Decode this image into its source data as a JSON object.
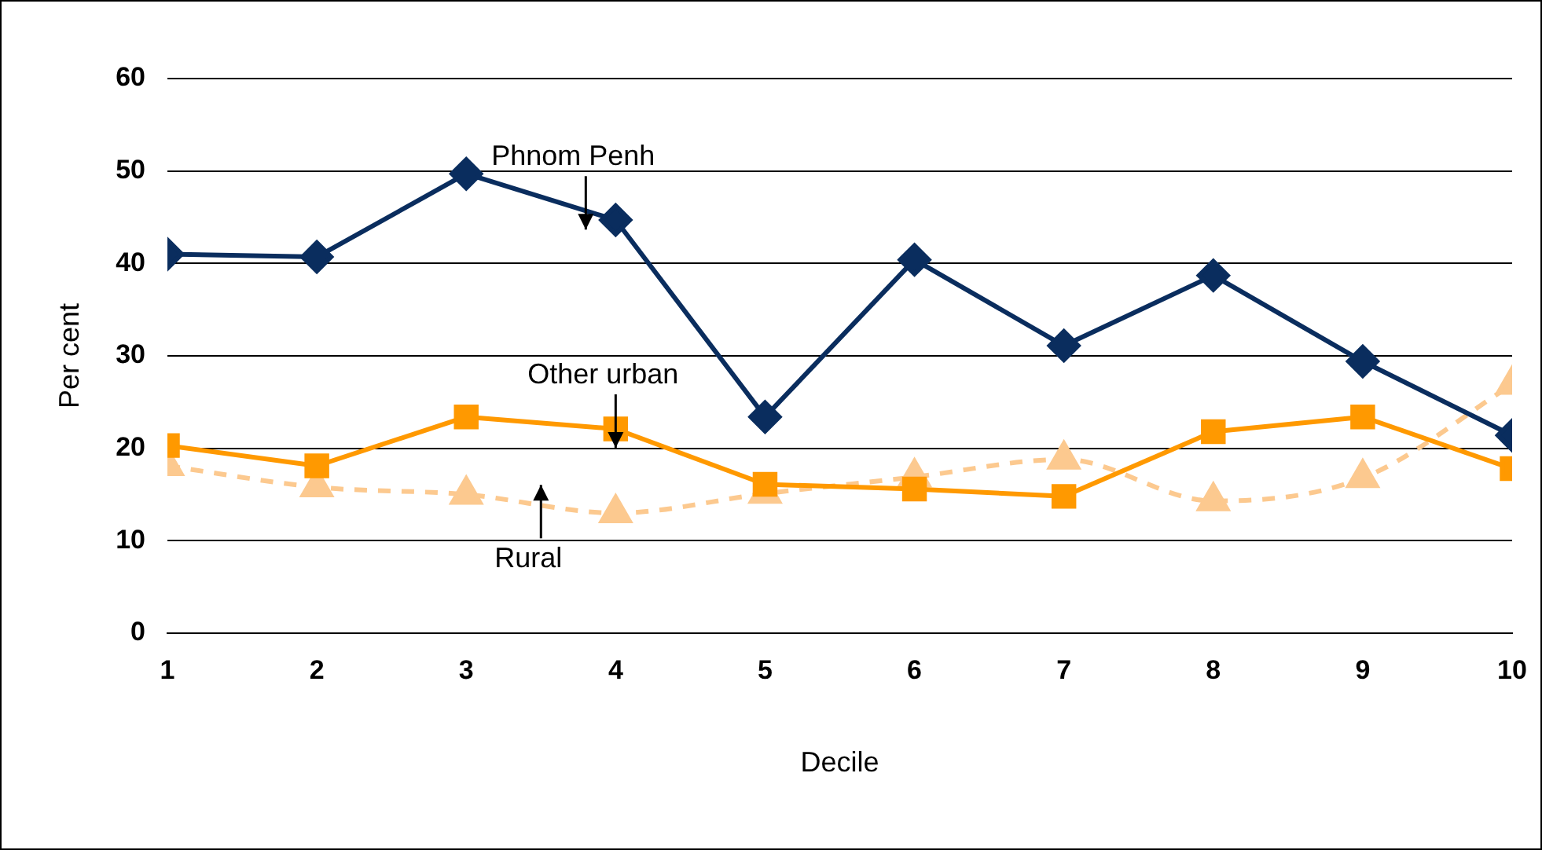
{
  "chart_data": {
    "type": "line",
    "xlabel": "Decile",
    "ylabel": "Per cent",
    "x": [
      1,
      2,
      3,
      4,
      5,
      6,
      7,
      8,
      9,
      10
    ],
    "xlim": [
      1,
      10
    ],
    "xticks": [
      1,
      2,
      3,
      4,
      5,
      6,
      7,
      8,
      9,
      10
    ],
    "ylim": [
      0,
      60
    ],
    "yticks": [
      0,
      10,
      20,
      30,
      40,
      50,
      60
    ],
    "grid": "y",
    "legend": false,
    "series": [
      {
        "name": "Phnom Penh",
        "color": "#0a2d5e",
        "marker": "diamond",
        "line_style": "solid",
        "values": [
          41.0,
          40.7,
          49.7,
          44.7,
          23.4,
          40.4,
          31.1,
          38.7,
          29.4,
          21.4
        ]
      },
      {
        "name": "Other urban",
        "color": "#ff9900",
        "marker": "square",
        "line_style": "solid",
        "values": [
          20.3,
          18.1,
          23.4,
          22.1,
          16.1,
          15.6,
          14.8,
          21.8,
          23.4,
          17.8
        ]
      },
      {
        "name": "Rural",
        "color": "#fcc98f",
        "marker": "triangle",
        "line_style": "dashed",
        "values": [
          18.1,
          15.8,
          15.0,
          13.0,
          15.1,
          16.9,
          18.8,
          14.3,
          16.8,
          26.9
        ]
      }
    ]
  }
}
